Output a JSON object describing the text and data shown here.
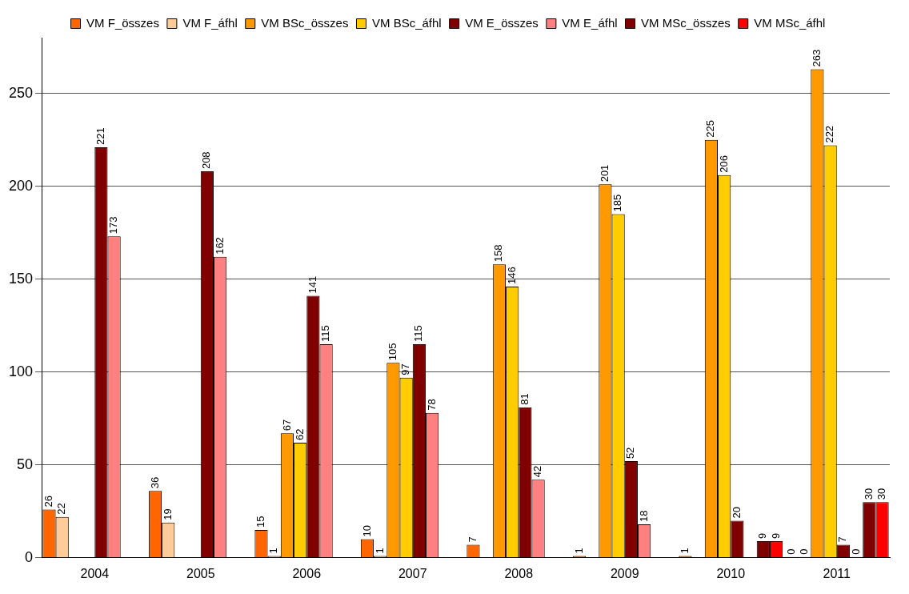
{
  "chart_data": {
    "type": "bar",
    "categories": [
      "2004",
      "2005",
      "2006",
      "2007",
      "2008",
      "2009",
      "2010",
      "2011"
    ],
    "series": [
      {
        "name": "VM F_összes",
        "color": "#ff6600",
        "values": [
          26,
          36,
          15,
          10,
          7,
          1,
          1,
          0
        ]
      },
      {
        "name": "VM F_áfhl",
        "color": "#ffcc99",
        "values": [
          22,
          19,
          1,
          1,
          null,
          null,
          null,
          0
        ]
      },
      {
        "name": "VM BSc_összes",
        "color": "#ff9900",
        "values": [
          null,
          null,
          67,
          105,
          158,
          201,
          225,
          263
        ]
      },
      {
        "name": "VM BSc_áfhl",
        "color": "#ffcc00",
        "values": [
          null,
          null,
          62,
          97,
          146,
          185,
          206,
          222
        ]
      },
      {
        "name": "VM E_összes",
        "color": "#800000",
        "values": [
          221,
          208,
          141,
          115,
          81,
          52,
          20,
          7
        ]
      },
      {
        "name": "VM E_áfhl",
        "color": "#ff8080",
        "values": [
          173,
          162,
          115,
          78,
          42,
          18,
          null,
          0
        ]
      },
      {
        "name": "VM MSc_összes",
        "color": "#800000",
        "values": [
          null,
          null,
          null,
          null,
          null,
          null,
          9,
          30
        ]
      },
      {
        "name": "VM MSc_áfhl",
        "color": "#ff0000",
        "values": [
          null,
          null,
          null,
          null,
          null,
          null,
          9,
          30
        ]
      }
    ],
    "ylim": [
      0,
      280
    ],
    "yticks": [
      0,
      50,
      100,
      150,
      200,
      250
    ],
    "grid": "y",
    "legend": "top",
    "data_labels": true
  }
}
